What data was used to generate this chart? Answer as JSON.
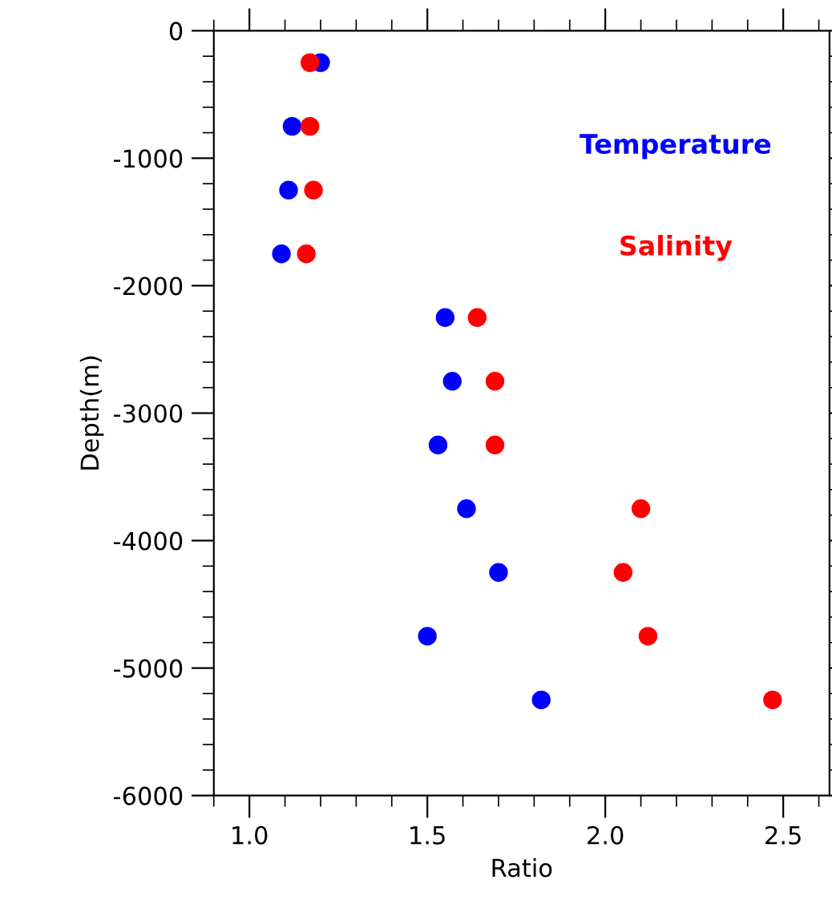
{
  "chart_data": {
    "type": "scatter",
    "xlabel": "Ratio",
    "ylabel": "Depth(m)",
    "xlim": [
      0.9,
      2.63
    ],
    "ylim": [
      -6000,
      0
    ],
    "xticks": [
      {
        "value": 1.0,
        "label": "1.0"
      },
      1.5,
      {
        "value": 2.0,
        "label": "2.0"
      },
      2.5
    ],
    "yticks": [
      0,
      {
        "value": -1000,
        "label": "-1000"
      },
      {
        "value": -2000,
        "label": "-2000"
      },
      {
        "value": -3000,
        "label": "-3000"
      },
      {
        "value": -4000,
        "label": "-4000"
      },
      {
        "value": -5000,
        "label": "-5000"
      },
      {
        "value": -6000,
        "label": "-6000"
      }
    ],
    "marker": "circle",
    "grid": false,
    "legend": false,
    "series": [
      {
        "name": "Temperature",
        "color": "#0000ff",
        "x": [
          1.2,
          1.12,
          1.11,
          1.09,
          1.55,
          1.57,
          1.53,
          1.61,
          1.7,
          1.5,
          1.82
        ],
        "values": [
          -250,
          -750,
          -1250,
          -1750,
          -2250,
          -2750,
          -3250,
          -3750,
          -4250,
          -4750,
          -5250
        ]
      },
      {
        "name": "Salinity",
        "color": "#ff0000",
        "x": [
          1.17,
          1.17,
          1.18,
          1.16,
          1.64,
          1.69,
          1.69,
          2.1,
          2.05,
          2.12,
          2.47
        ],
        "values": [
          -250,
          -750,
          -1250,
          -1750,
          -2250,
          -2750,
          -3250,
          -3750,
          -4250,
          -4750,
          -5250
        ]
      }
    ]
  }
}
